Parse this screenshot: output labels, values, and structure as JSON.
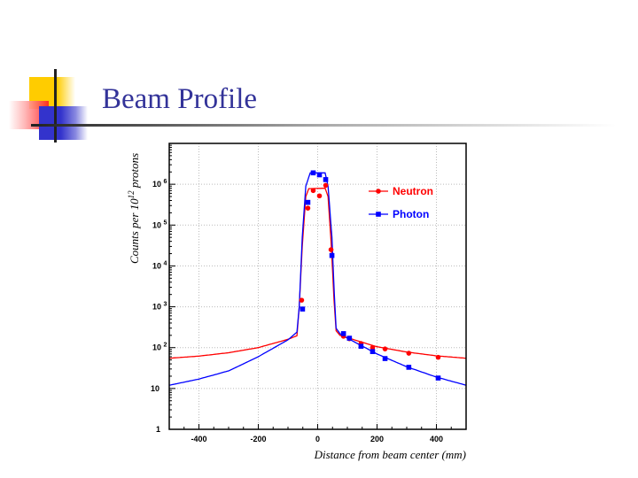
{
  "slide": {
    "title": "Beam Profile"
  },
  "colors": {
    "title": "#333399",
    "neutron": "#ff0000",
    "photon": "#0000ff"
  },
  "chart_data": {
    "type": "scatter",
    "title": "",
    "xlabel": "Distance from beam center (mm)",
    "ylabel_main": "Counts per 10",
    "ylabel_sup": "12",
    "ylabel_tail": " protons",
    "xlim": [
      -500,
      500
    ],
    "ylim": [
      1,
      10000000
    ],
    "yscale": "log",
    "grid": true,
    "legend_position": "top-right",
    "x_ticks": [
      {
        "value": -400,
        "label": "-400"
      },
      {
        "value": -200,
        "label": "-200"
      },
      {
        "value": 0,
        "label": "0"
      },
      {
        "value": 200,
        "label": "200"
      },
      {
        "value": 400,
        "label": "400"
      }
    ],
    "y_ticks": [
      {
        "value": 1,
        "base": "1",
        "exp": ""
      },
      {
        "value": 10,
        "base": "10",
        "exp": ""
      },
      {
        "value": 100,
        "base": "10",
        "exp": "2"
      },
      {
        "value": 1000,
        "base": "10",
        "exp": "3"
      },
      {
        "value": 10000,
        "base": "10",
        "exp": "4"
      },
      {
        "value": 100000,
        "base": "10",
        "exp": "5"
      },
      {
        "value": 1000000,
        "base": "10",
        "exp": "6"
      }
    ],
    "series": [
      {
        "name": "Neutron",
        "color": "#ff0000",
        "marker": "circle",
        "points": [
          [
            -54,
            1450
          ],
          [
            -33,
            260000
          ],
          [
            -15,
            700000
          ],
          [
            6,
            520000
          ],
          [
            27,
            940000
          ],
          [
            45,
            25000
          ],
          [
            87,
            190
          ],
          [
            107,
            165
          ],
          [
            146,
            126
          ],
          [
            185,
            100
          ],
          [
            227,
            93
          ],
          [
            307,
            73
          ],
          [
            406,
            58
          ]
        ],
        "fit": [
          [
            -500,
            55
          ],
          [
            -400,
            62
          ],
          [
            -300,
            75
          ],
          [
            -200,
            100
          ],
          [
            -100,
            160
          ],
          [
            -70,
            195
          ],
          [
            -62,
            1000
          ],
          [
            -52,
            30000
          ],
          [
            -40,
            500000
          ],
          [
            -30,
            780000
          ],
          [
            25,
            800000
          ],
          [
            35,
            500000
          ],
          [
            45,
            40000
          ],
          [
            55,
            1500
          ],
          [
            62,
            260
          ],
          [
            75,
            200
          ],
          [
            100,
            175
          ],
          [
            200,
            105
          ],
          [
            300,
            78
          ],
          [
            400,
            63
          ],
          [
            500,
            55
          ]
        ]
      },
      {
        "name": "Photon",
        "color": "#0000ff",
        "marker": "square",
        "points": [
          [
            -51,
            880
          ],
          [
            -33,
            360000
          ],
          [
            -15,
            1900000
          ],
          [
            6,
            1700000
          ],
          [
            27,
            1300000
          ],
          [
            48,
            18000
          ],
          [
            87,
            220
          ],
          [
            107,
            170
          ],
          [
            146,
            108
          ],
          [
            185,
            80
          ],
          [
            227,
            54
          ],
          [
            307,
            33
          ],
          [
            406,
            18
          ]
        ],
        "fit": [
          [
            -500,
            12
          ],
          [
            -400,
            17
          ],
          [
            -300,
            27
          ],
          [
            -200,
            60
          ],
          [
            -100,
            155
          ],
          [
            -70,
            240
          ],
          [
            -62,
            1000
          ],
          [
            -52,
            50000
          ],
          [
            -40,
            900000
          ],
          [
            -25,
            1900000
          ],
          [
            25,
            1900000
          ],
          [
            35,
            900000
          ],
          [
            48,
            50000
          ],
          [
            56,
            2000
          ],
          [
            62,
            300
          ],
          [
            75,
            220
          ],
          [
            100,
            170
          ],
          [
            200,
            70
          ],
          [
            300,
            34
          ],
          [
            400,
            19
          ],
          [
            500,
            12
          ]
        ]
      }
    ]
  }
}
